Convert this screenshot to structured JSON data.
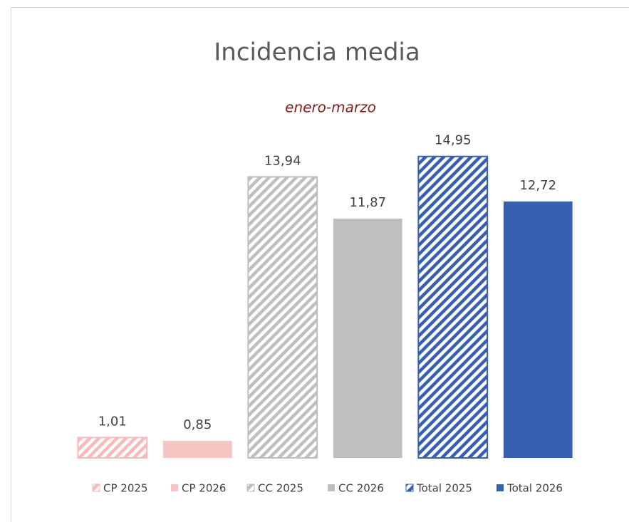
{
  "chart_data": {
    "type": "bar",
    "title": "Incidencia media",
    "subtitle": "enero-marzo",
    "categories": [
      null
    ],
    "series": [
      {
        "name": "CP 2025",
        "color": "#f7b9b9",
        "hatch": true,
        "values": [
          1.01
        ],
        "value_labels": [
          "1,01"
        ]
      },
      {
        "name": "CP 2026",
        "color": "#f9c4c4",
        "hatch": false,
        "values": [
          0.85
        ],
        "value_labels": [
          "0,85"
        ]
      },
      {
        "name": "CC 2025",
        "color": "#bfbfbf",
        "hatch": true,
        "values": [
          13.94
        ],
        "value_labels": [
          "13,94"
        ]
      },
      {
        "name": "CC 2026",
        "color": "#bfbfbf",
        "hatch": false,
        "values": [
          11.87
        ],
        "value_labels": [
          "11,87"
        ]
      },
      {
        "name": "Total 2025",
        "color": "#3760b0",
        "hatch": true,
        "values": [
          14.95
        ],
        "value_labels": [
          "14,95"
        ]
      },
      {
        "name": "Total 2026",
        "color": "#3760b0",
        "hatch": false,
        "values": [
          12.72
        ],
        "value_labels": [
          "12,72"
        ]
      }
    ],
    "ylim": [
      0,
      16
    ]
  }
}
